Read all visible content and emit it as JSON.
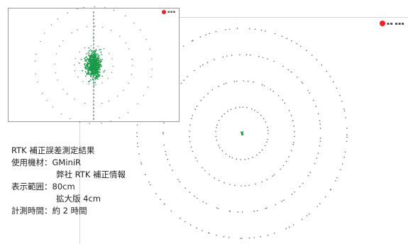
{
  "chart_data": [
    {
      "type": "scatter",
      "view": "main",
      "description_range": "80cm",
      "center": [
        0,
        0
      ],
      "rings_cm": [
        10,
        20,
        30,
        40
      ],
      "grid": false,
      "colors": {
        "cluster": "#1a9a4a",
        "rings": "#666666"
      }
    },
    {
      "type": "scatter",
      "view": "inset",
      "description_range": "4cm",
      "center": [
        0,
        0
      ],
      "rings_cm": [
        0.5,
        1.0,
        1.5
      ],
      "grid": false,
      "colors": {
        "cluster": "#1a9a4a",
        "rings": "#777777",
        "axis": "#555555"
      }
    }
  ],
  "logo": {
    "color": "#e8252a",
    "icon": "company-logo-icon"
  },
  "notes": {
    "title": "RTK 補正誤差測定結果",
    "device_label": "使用機材：",
    "device_value": "GMiniR",
    "device_value2": "弊社 RTK 補正情報",
    "range_label": "表示範囲：",
    "range_value": "80cm",
    "range_value2": "拡大版 4cm",
    "time_label": "計測時間：",
    "time_value": "約 2 時間"
  }
}
